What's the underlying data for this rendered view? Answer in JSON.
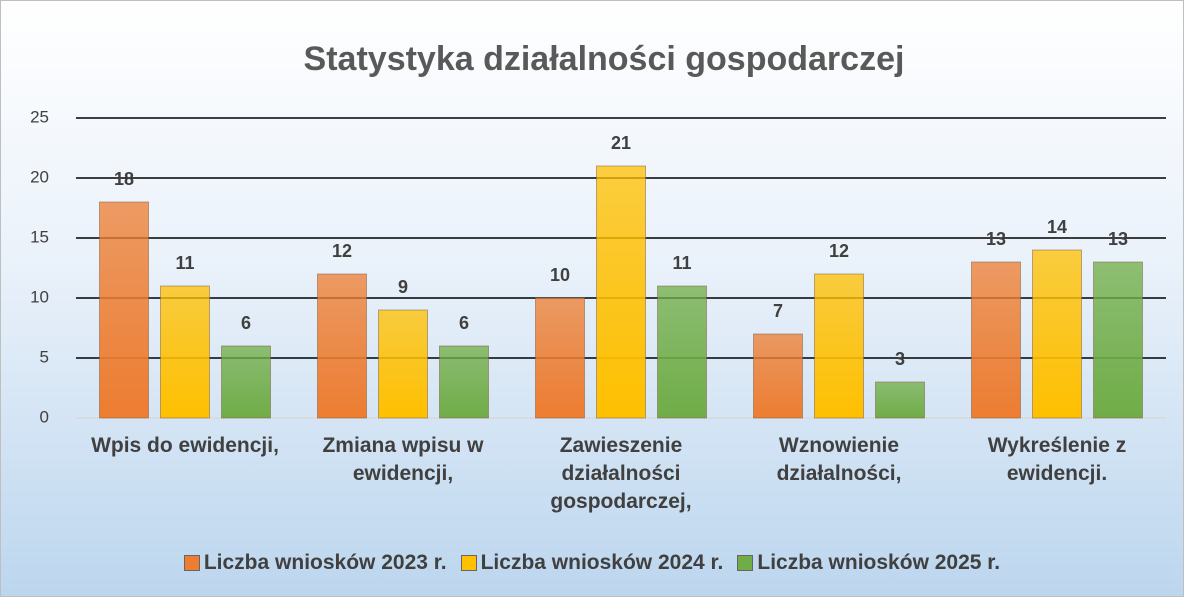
{
  "chart_data": {
    "type": "bar",
    "title": "Statystyka działalności gospodarczej",
    "categories": [
      "Wpis do ewidencji,",
      "Zmiana wpisu w ewidencji,",
      "Zawieszenie działalności gospodarczej,",
      "Wznowienie działalności,",
      "Wykreślenie z ewidencji."
    ],
    "series": [
      {
        "name": "Liczba wniosków 2023 r.",
        "color": "#ed7d31",
        "values": [
          18,
          12,
          10,
          7,
          13
        ]
      },
      {
        "name": "Liczba wniosków 2024 r.",
        "color": "#ffc000",
        "values": [
          11,
          9,
          21,
          12,
          14
        ]
      },
      {
        "name": "Liczba wniosków 2025 r.",
        "color": "#70ad47",
        "values": [
          6,
          6,
          11,
          3,
          13
        ]
      }
    ],
    "ylim": [
      0,
      25
    ],
    "yticks": [
      0,
      5,
      10,
      15,
      20,
      25
    ],
    "grid": true,
    "legend": "bottom"
  }
}
